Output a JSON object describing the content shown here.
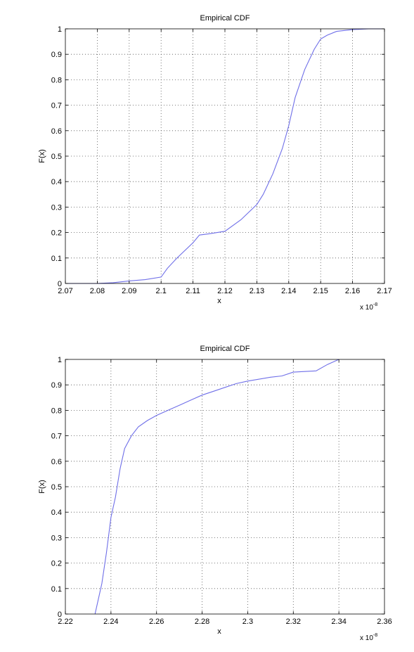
{
  "chart_data": [
    {
      "type": "line",
      "title": "Empirical CDF",
      "xlabel": "x",
      "ylabel": "F(x)",
      "x_exponent_base": "x 10",
      "x_exponent_power": "-8",
      "xlim": [
        2.07,
        2.17
      ],
      "ylim": [
        0,
        1
      ],
      "xticks": [
        "2.07",
        "2.08",
        "2.09",
        "2.1",
        "2.11",
        "2.12",
        "2.13",
        "2.14",
        "2.15",
        "2.16",
        "2.17"
      ],
      "yticks": [
        "0",
        "0.1",
        "0.2",
        "0.3",
        "0.4",
        "0.5",
        "0.6",
        "0.7",
        "0.8",
        "0.9",
        "1"
      ],
      "grid": true,
      "line_color": "#6f6fe8",
      "series": [
        {
          "x": [
            2.07,
            2.08,
            2.085,
            2.09,
            2.095,
            2.1,
            2.102,
            2.105,
            2.11,
            2.112,
            2.115,
            2.12,
            2.125,
            2.13,
            2.132,
            2.135,
            2.138,
            2.14,
            2.142,
            2.145,
            2.148,
            2.15,
            2.152,
            2.155,
            2.16,
            2.165,
            2.17
          ],
          "y": [
            0,
            0,
            0.003,
            0.01,
            0.015,
            0.025,
            0.06,
            0.1,
            0.16,
            0.19,
            0.195,
            0.205,
            0.25,
            0.31,
            0.35,
            0.43,
            0.53,
            0.62,
            0.73,
            0.84,
            0.92,
            0.96,
            0.975,
            0.99,
            0.997,
            1,
            1
          ]
        }
      ]
    },
    {
      "type": "line",
      "title": "Empirical CDF",
      "xlabel": "x",
      "ylabel": "F(x)",
      "x_exponent_base": "x 10",
      "x_exponent_power": "-8",
      "xlim": [
        2.22,
        2.36
      ],
      "ylim": [
        0,
        1
      ],
      "xticks": [
        "2.22",
        "2.24",
        "2.26",
        "2.28",
        "2.3",
        "2.32",
        "2.34",
        "2.36"
      ],
      "yticks": [
        "0",
        "0.1",
        "0.2",
        "0.3",
        "0.4",
        "0.5",
        "0.6",
        "0.7",
        "0.8",
        "0.9",
        "1"
      ],
      "grid": true,
      "line_color": "#6f6fe8",
      "series": [
        {
          "x": [
            2.233,
            2.236,
            2.238,
            2.24,
            2.242,
            2.244,
            2.246,
            2.249,
            2.252,
            2.256,
            2.26,
            2.265,
            2.27,
            2.275,
            2.28,
            2.285,
            2.29,
            2.295,
            2.3,
            2.31,
            2.315,
            2.32,
            2.33,
            2.335,
            2.34
          ],
          "y": [
            0,
            0.12,
            0.24,
            0.38,
            0.46,
            0.57,
            0.65,
            0.7,
            0.735,
            0.76,
            0.78,
            0.8,
            0.82,
            0.84,
            0.86,
            0.875,
            0.89,
            0.905,
            0.915,
            0.93,
            0.935,
            0.95,
            0.955,
            0.98,
            1
          ]
        }
      ]
    }
  ]
}
